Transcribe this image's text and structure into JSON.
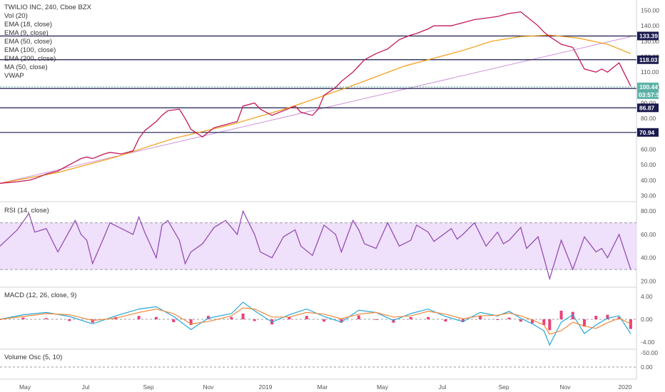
{
  "chart_data": {
    "type": "line",
    "legend": {
      "title": "TWILIO INC, 240, Cboe BZX",
      "indicators": [
        "Vol (20)",
        "EMA (18, close)",
        "EMA (9, close)",
        "EMA (50, close)",
        "EMA (100, close)",
        "EMA (200, close)",
        "MA (50, close)",
        "VWAP"
      ]
    },
    "price_axis": {
      "ticks": [
        "150.00",
        "140.00",
        "130.00",
        "120.00",
        "110.00",
        "100.00",
        "90.00",
        "80.00",
        "70.00",
        "60.00",
        "50.00",
        "40.00",
        "30.00"
      ],
      "ylim": [
        27,
        153
      ],
      "levels": [
        {
          "value": 133.39,
          "label": "133.39"
        },
        {
          "value": 118.03,
          "label": "118.03"
        },
        {
          "value": 99.41,
          "label": "99.41"
        },
        {
          "value": 86.87,
          "label": "86.87"
        },
        {
          "value": 70.94,
          "label": "70.94"
        }
      ],
      "last_price": {
        "value": 100.44,
        "label": "100.44",
        "countdown": "03:57:50"
      }
    },
    "x_axis": {
      "ticks": [
        "May",
        "Jul",
        "Sep",
        "Nov",
        "2019",
        "Mar",
        "May",
        "Jul",
        "Sep",
        "Nov",
        "2020"
      ]
    },
    "price_series": {
      "name": "close",
      "x": [
        0,
        3,
        5,
        6,
        8,
        10,
        11,
        13,
        14,
        15,
        16,
        18,
        19,
        21,
        23,
        24,
        25,
        27,
        28,
        29,
        31,
        32,
        33,
        35,
        37,
        39,
        41,
        42,
        44,
        45,
        47,
        49,
        51,
        52,
        54,
        55,
        56,
        58,
        59,
        61,
        62,
        63,
        65,
        67,
        68,
        69,
        71,
        72,
        74,
        75,
        78,
        79,
        80,
        82,
        84,
        86,
        87,
        88,
        90,
        91,
        93,
        94,
        95,
        97,
        99,
        101,
        103,
        104,
        105,
        107,
        109
      ],
      "y": [
        38,
        39,
        40,
        41,
        44,
        46,
        48,
        52,
        54,
        55,
        54,
        57,
        58,
        57,
        59,
        67,
        72,
        78,
        82,
        85,
        86,
        80,
        73,
        68,
        74,
        76,
        78,
        88,
        90,
        86,
        82,
        85,
        88,
        84,
        82,
        86,
        95,
        100,
        104,
        110,
        114,
        118,
        122,
        125,
        128,
        131,
        134,
        135,
        138,
        140,
        140,
        141,
        142,
        144,
        145,
        146,
        147,
        148,
        149,
        146,
        140,
        136,
        133,
        128,
        126,
        112,
        110,
        112,
        110,
        116,
        101
      ]
    },
    "ema200_series": {
      "name": "EMA (200, close)",
      "x": [
        0,
        10,
        20,
        30,
        40,
        50,
        60,
        70,
        80,
        85,
        90,
        95,
        100,
        105,
        109
      ],
      "y": [
        38,
        45,
        55,
        67,
        76,
        87,
        100,
        114,
        124,
        130,
        133,
        134,
        132,
        128,
        122
      ]
    },
    "trendline": {
      "x": [
        0,
        109
      ],
      "y": [
        38,
        133
      ]
    },
    "volume_osc": {
      "title": "Volume Osc (5, 10)",
      "ticks": [
        "0.00",
        "-50.00"
      ]
    }
  },
  "panes": {
    "rsi": {
      "title": "RSI (14, close)",
      "ticks": [
        "80.00",
        "60.00",
        "40.00",
        "20.00"
      ],
      "ylim": [
        16,
        85
      ],
      "band": [
        30,
        70
      ],
      "x": [
        0,
        3,
        5,
        6,
        8,
        9,
        10,
        13,
        14,
        15,
        16,
        18,
        19,
        21,
        23,
        24,
        25,
        27,
        28,
        29,
        31,
        32,
        33,
        35,
        37,
        39,
        41,
        42,
        44,
        45,
        47,
        49,
        51,
        52,
        54,
        55,
        56,
        58,
        59,
        61,
        62,
        63,
        65,
        67,
        68,
        69,
        71,
        72,
        74,
        75,
        78,
        79,
        80,
        82,
        84,
        86,
        87,
        88,
        90,
        91,
        93,
        94,
        95,
        97,
        99,
        101,
        103,
        104,
        105,
        107,
        109
      ],
      "values": [
        50,
        64,
        78,
        62,
        65,
        55,
        45,
        72,
        60,
        55,
        35,
        58,
        70,
        65,
        60,
        75,
        62,
        40,
        68,
        72,
        55,
        35,
        45,
        52,
        66,
        72,
        60,
        80,
        60,
        45,
        40,
        58,
        64,
        50,
        42,
        55,
        68,
        60,
        45,
        72,
        64,
        52,
        48,
        70,
        60,
        50,
        55,
        68,
        62,
        54,
        65,
        56,
        60,
        70,
        50,
        62,
        52,
        55,
        66,
        48,
        58,
        40,
        22,
        55,
        30,
        58,
        45,
        48,
        40,
        60,
        30
      ]
    },
    "macd": {
      "title": "MACD (12, 26, close, 9)",
      "ticks": [
        "4.00",
        "0.00",
        "-4.00"
      ],
      "ylim": [
        -5,
        5
      ],
      "x": [
        0,
        4,
        8,
        12,
        16,
        20,
        24,
        27,
        30,
        33,
        36,
        40,
        42,
        44,
        47,
        50,
        53,
        56,
        59,
        62,
        65,
        68,
        71,
        74,
        77,
        80,
        83,
        86,
        88,
        90,
        92,
        94,
        95,
        97,
        99,
        101,
        103,
        105,
        107,
        109
      ],
      "macd": [
        0,
        0.8,
        1.2,
        0.5,
        -0.8,
        0.6,
        1.8,
        2.2,
        0.5,
        -1.8,
        0.2,
        1.0,
        3.0,
        1.5,
        -0.5,
        0.8,
        1.8,
        0.5,
        -0.5,
        1.6,
        1.2,
        -0.2,
        1.0,
        1.8,
        0.5,
        -0.4,
        1.2,
        0.6,
        1.4,
        0.2,
        -0.8,
        -2.0,
        -4.5,
        -0.5,
        0.8,
        -2.5,
        -1.0,
        0.2,
        0.6,
        -2.5
      ],
      "signal": [
        0,
        0.5,
        1.0,
        0.8,
        -0.2,
        0.2,
        1.2,
        1.8,
        1.0,
        -0.8,
        -0.4,
        0.6,
        2.0,
        1.8,
        0.4,
        0.4,
        1.2,
        0.9,
        0.1,
        0.9,
        1.2,
        0.4,
        0.6,
        1.4,
        0.9,
        0.1,
        0.6,
        0.7,
        1.1,
        0.6,
        -0.1,
        -1.0,
        -2.6,
        -2.0,
        -0.5,
        -1.2,
        -1.6,
        -0.6,
        0.2,
        -0.8
      ]
    }
  },
  "colors": {
    "price": "#c2185b",
    "ema200": "#f39c12",
    "trendline": "#ce93d8",
    "level": "#1a1a4e",
    "last": "#5fb3a8",
    "rsi": "#8e44ad",
    "rsi_band": "#efe0fb",
    "macd": "#26a7d8",
    "signal": "#f0873a",
    "hist": "#e91e63",
    "vosc": "#53b5d6"
  }
}
